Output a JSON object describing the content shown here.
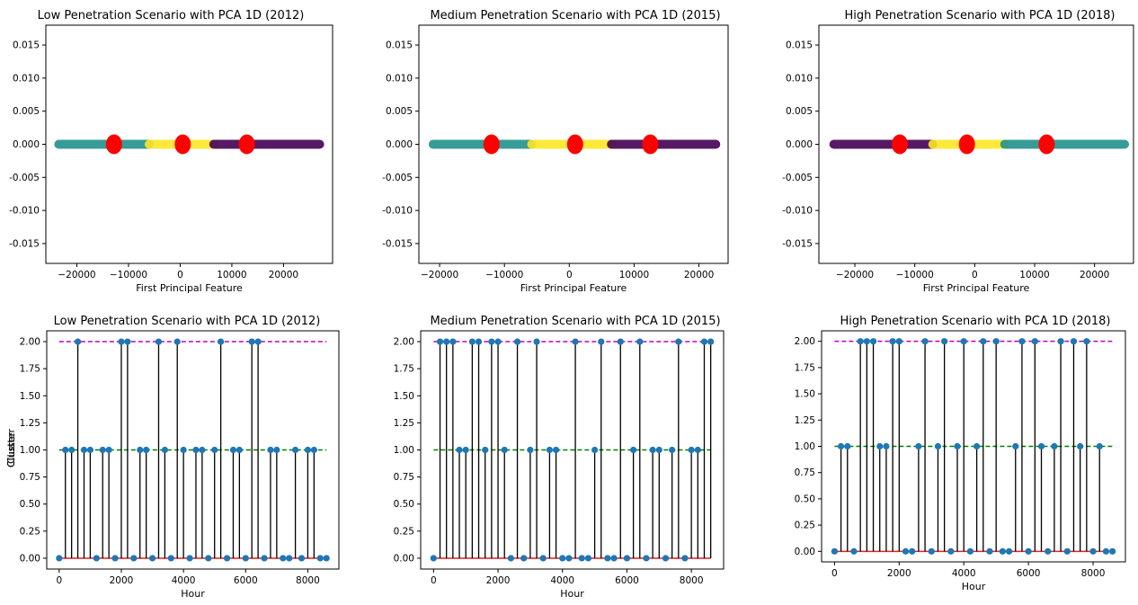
{
  "chart_data": [
    {
      "type": "scatter",
      "title": "Low Penetration Scenario with PCA 1D (2012)",
      "xlabel": "First Principal Feature",
      "ylabel": "",
      "xlim": [
        -26000,
        29500
      ],
      "ylim": [
        -0.018,
        0.018
      ],
      "xticks": [
        -20000,
        -10000,
        0,
        10000,
        20000
      ],
      "yticks": [
        0.015,
        0.01,
        0.005,
        0.0,
        -0.005,
        -0.01,
        -0.015
      ],
      "bands": [
        {
          "from": -23500,
          "to": -6000,
          "y": 0,
          "color": "#21918c"
        },
        {
          "from": -6000,
          "to": 6500,
          "y": 0,
          "color": "#fde725"
        },
        {
          "from": 6500,
          "to": 27000,
          "y": 0,
          "color": "#440154"
        }
      ],
      "centroids": [
        {
          "x": -12800,
          "y": 0
        },
        {
          "x": 500,
          "y": 0
        },
        {
          "x": 12900,
          "y": 0
        }
      ],
      "centroid_color": "#ff0000"
    },
    {
      "type": "scatter",
      "title": "Medium Penetration Scenario with PCA 1D (2015)",
      "xlabel": "First Principal Feature",
      "ylabel": "",
      "xlim": [
        -23200,
        24500
      ],
      "ylim": [
        -0.018,
        0.018
      ],
      "xticks": [
        -20000,
        -10000,
        0,
        10000,
        20000
      ],
      "yticks": [
        0.015,
        0.01,
        0.005,
        0.0,
        -0.005,
        -0.01,
        -0.015
      ],
      "bands": [
        {
          "from": -21000,
          "to": -5800,
          "y": 0,
          "color": "#21918c"
        },
        {
          "from": -5800,
          "to": 6500,
          "y": 0,
          "color": "#fde725"
        },
        {
          "from": 6500,
          "to": 22600,
          "y": 0,
          "color": "#440154"
        }
      ],
      "centroids": [
        {
          "x": -12000,
          "y": 0
        },
        {
          "x": 900,
          "y": 0
        },
        {
          "x": 12500,
          "y": 0
        }
      ],
      "centroid_color": "#ff0000"
    },
    {
      "type": "scatter",
      "title": "High Penetration Scenario with PCA 1D (2018)",
      "xlabel": "First Principal Feature",
      "ylabel": "",
      "xlim": [
        -26000,
        26500
      ],
      "ylim": [
        -0.018,
        0.018
      ],
      "xticks": [
        -20000,
        -10000,
        0,
        10000,
        20000
      ],
      "yticks": [
        0.015,
        0.01,
        0.005,
        0.0,
        -0.005,
        -0.01,
        -0.015
      ],
      "bands": [
        {
          "from": -23500,
          "to": -7000,
          "y": 0,
          "color": "#440154"
        },
        {
          "from": -7000,
          "to": 5000,
          "y": 0,
          "color": "#fde725"
        },
        {
          "from": 5000,
          "to": 25000,
          "y": 0,
          "color": "#21918c"
        }
      ],
      "centroids": [
        {
          "x": -12500,
          "y": 0
        },
        {
          "x": -1300,
          "y": 0
        },
        {
          "x": 12000,
          "y": 0
        }
      ],
      "centroid_color": "#ff0000"
    },
    {
      "type": "stem",
      "title": "Low Penetration Scenario with PCA 1D (2012)",
      "xlabel": "Hour",
      "ylabel": "Cluster",
      "xlim": [
        -400,
        9000
      ],
      "ylim": [
        -0.1,
        2.1
      ],
      "xticks": [
        0,
        2000,
        4000,
        6000,
        8000
      ],
      "yticks": [
        0.0,
        0.25,
        0.5,
        0.75,
        1.0,
        1.25,
        1.5,
        1.75,
        2.0
      ],
      "reference_lines": [
        {
          "y": 2,
          "color": "#bf00bf",
          "style": "dashed"
        },
        {
          "y": 1,
          "color": "#008000",
          "style": "dashed"
        },
        {
          "y": 0,
          "color": "#d62728",
          "style": "solid"
        }
      ],
      "x": [
        0,
        200,
        400,
        600,
        800,
        1000,
        1200,
        1400,
        1600,
        1800,
        2000,
        2200,
        2400,
        2600,
        2800,
        3000,
        3200,
        3400,
        3600,
        3800,
        4000,
        4200,
        4400,
        4600,
        4800,
        5000,
        5200,
        5400,
        5600,
        5800,
        6000,
        6200,
        6400,
        6600,
        6800,
        7000,
        7200,
        7400,
        7600,
        7800,
        8000,
        8200,
        8400,
        8600
      ],
      "values": [
        0,
        1,
        1,
        2,
        1,
        1,
        0,
        1,
        1,
        0,
        2,
        2,
        0,
        1,
        1,
        0,
        2,
        1,
        0,
        2,
        1,
        0,
        1,
        1,
        0,
        1,
        2,
        0,
        1,
        1,
        0,
        2,
        2,
        0,
        1,
        1,
        0,
        0,
        1,
        0,
        1,
        1,
        0,
        0
      ]
    },
    {
      "type": "stem",
      "title": "Medium Penetration Scenario with PCA 1D (2015)",
      "xlabel": "Hour",
      "ylabel": "Cluster",
      "xlim": [
        -400,
        9000
      ],
      "ylim": [
        -0.1,
        2.1
      ],
      "xticks": [
        0,
        2000,
        4000,
        6000,
        8000
      ],
      "yticks": [
        0.0,
        0.25,
        0.5,
        0.75,
        1.0,
        1.25,
        1.5,
        1.75,
        2.0
      ],
      "reference_lines": [
        {
          "y": 2,
          "color": "#bf00bf",
          "style": "dashed"
        },
        {
          "y": 1,
          "color": "#008000",
          "style": "dashed"
        },
        {
          "y": 0,
          "color": "#d62728",
          "style": "solid"
        }
      ],
      "x": [
        0,
        200,
        400,
        600,
        800,
        1000,
        1200,
        1400,
        1600,
        1800,
        2000,
        2200,
        2400,
        2600,
        2800,
        3000,
        3200,
        3400,
        3600,
        3800,
        4000,
        4200,
        4400,
        4600,
        4800,
        5000,
        5200,
        5400,
        5600,
        5800,
        6000,
        6200,
        6400,
        6600,
        6800,
        7000,
        7200,
        7400,
        7600,
        7800,
        8000,
        8200,
        8400,
        8600
      ],
      "values": [
        0,
        2,
        2,
        2,
        1,
        1,
        2,
        2,
        1,
        2,
        2,
        1,
        0,
        2,
        0,
        1,
        2,
        0,
        1,
        1,
        0,
        0,
        2,
        0,
        0,
        1,
        2,
        0,
        0,
        2,
        0,
        1,
        2,
        0,
        1,
        1,
        0,
        1,
        2,
        0,
        1,
        1,
        2,
        2
      ]
    },
    {
      "type": "stem",
      "title": "High Penetration Scenario with PCA 1D (2018)",
      "xlabel": "Hour",
      "ylabel": "Cluster",
      "xlim": [
        -400,
        9000
      ],
      "ylim": [
        -0.1,
        2.1
      ],
      "xticks": [
        0,
        2000,
        4000,
        6000,
        8000
      ],
      "yticks": [
        0.0,
        0.25,
        0.5,
        0.75,
        1.0,
        1.25,
        1.5,
        1.75,
        2.0
      ],
      "reference_lines": [
        {
          "y": 2,
          "color": "#bf00bf",
          "style": "dashed"
        },
        {
          "y": 1,
          "color": "#008000",
          "style": "dashed"
        },
        {
          "y": 0,
          "color": "#d62728",
          "style": "solid"
        }
      ],
      "x": [
        0,
        200,
        400,
        600,
        800,
        1000,
        1200,
        1400,
        1600,
        1800,
        2000,
        2200,
        2400,
        2600,
        2800,
        3000,
        3200,
        3400,
        3600,
        3800,
        4000,
        4200,
        4400,
        4600,
        4800,
        5000,
        5200,
        5400,
        5600,
        5800,
        6000,
        6200,
        6400,
        6600,
        6800,
        7000,
        7200,
        7400,
        7600,
        7800,
        8000,
        8200,
        8400,
        8600
      ],
      "values": [
        0,
        1,
        1,
        0,
        2,
        2,
        2,
        1,
        1,
        2,
        2,
        0,
        0,
        1,
        2,
        0,
        1,
        2,
        0,
        1,
        2,
        0,
        1,
        2,
        0,
        2,
        0,
        0,
        1,
        2,
        0,
        2,
        1,
        0,
        1,
        2,
        0,
        2,
        1,
        2,
        0,
        1,
        0,
        0
      ]
    }
  ]
}
